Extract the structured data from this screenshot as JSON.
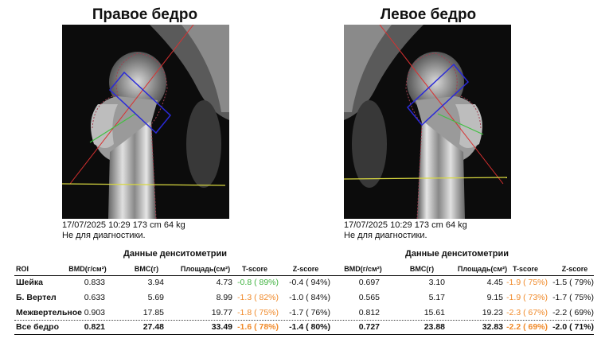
{
  "titles": {
    "right": "Правое бедро",
    "left": "Левое бедро"
  },
  "captions": {
    "right": {
      "line1": "17/07/2025 10:29 173 cm 64 kg",
      "line2": "Не для диагностики."
    },
    "left": {
      "line1": "17/07/2025 10:29 173 cm 64 kg",
      "line2": "Не для диагностики."
    }
  },
  "section_titles": {
    "right": "Данные денситометрии",
    "left": "Данные денситометрии"
  },
  "headers": {
    "roi": "ROI",
    "right": [
      "BMD(г/см²)",
      "BMC(г)",
      "Площадь(см²)",
      "T-score",
      "Z-score"
    ],
    "left": [
      "BMD(г/см²)",
      "BMC(г)",
      "Площадь(см²)",
      "T-score",
      "Z-score"
    ]
  },
  "rows": [
    {
      "label": "Шейка",
      "right": {
        "bmd": "0.833",
        "bmc": "3.94",
        "area": "4.73",
        "t": "-0.8 ( 89%)",
        "z": "-0.4 ( 94%)"
      },
      "left": {
        "bmd": "0.697",
        "bmc": "3.10",
        "area": "4.45",
        "t": "-1.9 ( 75%)",
        "z": "-1.5 ( 79%)"
      }
    },
    {
      "label": "Б. Вертел",
      "right": {
        "bmd": "0.633",
        "bmc": "5.69",
        "area": "8.99",
        "t": "-1.3 ( 82%)",
        "z": "-1.0 ( 84%)"
      },
      "left": {
        "bmd": "0.565",
        "bmc": "5.17",
        "area": "9.15",
        "t": "-1.9 ( 73%)",
        "z": "-1.7 ( 75%)"
      }
    },
    {
      "label": "Межвертельное",
      "right": {
        "bmd": "0.903",
        "bmc": "17.85",
        "area": "19.77",
        "t": "-1.8 ( 75%)",
        "z": "-1.7 ( 76%)"
      },
      "left": {
        "bmd": "0.812",
        "bmc": "15.61",
        "area": "19.23",
        "t": "-2.3 ( 67%)",
        "z": "-2.2 ( 69%)"
      }
    },
    {
      "label": "Все бедро",
      "right": {
        "bmd": "0.821",
        "bmc": "27.48",
        "area": "33.49",
        "t": "-1.6 ( 78%)",
        "z": "-1.4 ( 80%)"
      },
      "left": {
        "bmd": "0.727",
        "bmc": "23.88",
        "area": "32.83",
        "t": "-2.2 ( 69%)",
        "z": "-2.0 ( 71%)"
      }
    }
  ],
  "tscore_colors": [
    "#3fb23f",
    "#f08a2a",
    "#f08a2a",
    "#f08a2a"
  ],
  "colors": {
    "roi_box": "#2a2ad8",
    "neck_axis": "#d83030",
    "shaft_line": "#d8d840",
    "neck_line": "#40c040"
  }
}
